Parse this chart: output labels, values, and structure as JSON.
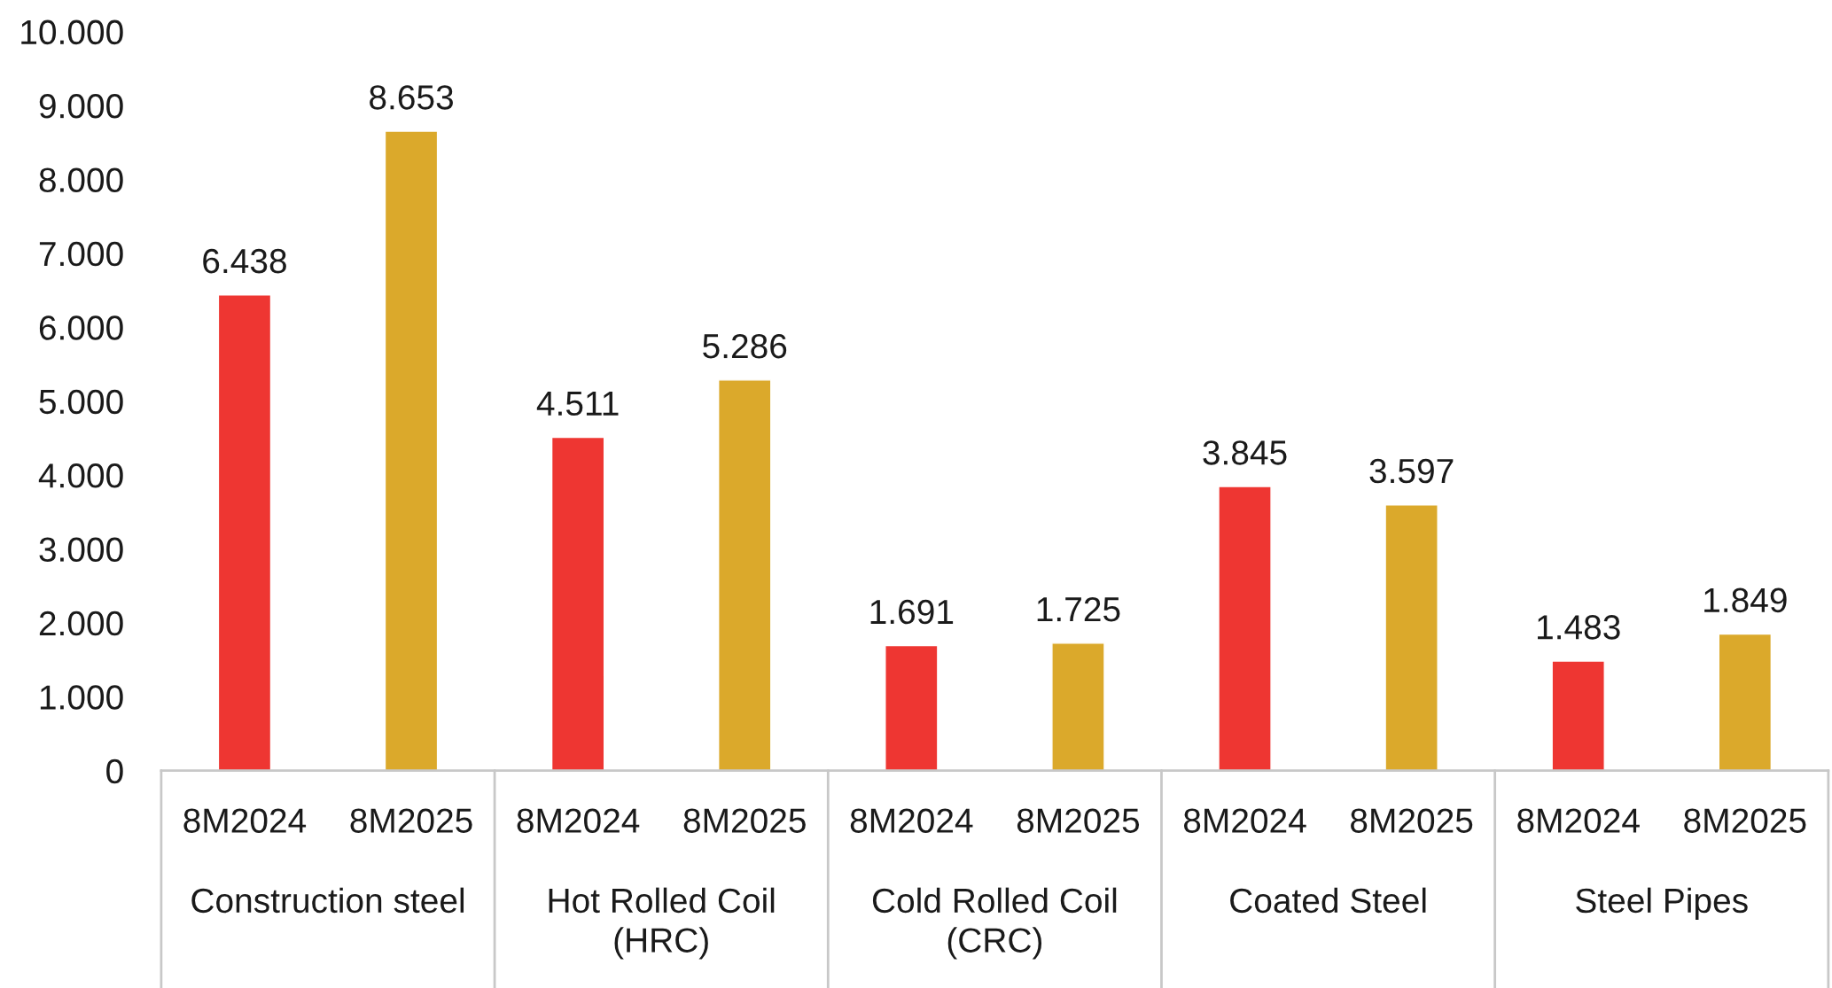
{
  "chart_data": {
    "type": "bar",
    "categories": [
      "Construction steel",
      "Hot Rolled Coil\n(HRC)",
      "Cold Rolled Coil\n(CRC)",
      "Coated Steel",
      "Steel Pipes"
    ],
    "series": [
      {
        "name": "8M2024",
        "color": "#ee3632",
        "values": [
          6438,
          4511,
          1691,
          3845,
          1483
        ],
        "value_labels": [
          "6.438",
          "4.511",
          "1.691",
          "3.845",
          "1.483"
        ]
      },
      {
        "name": "8M2025",
        "color": "#dba92b",
        "values": [
          8653,
          5286,
          1725,
          3597,
          1849
        ],
        "value_labels": [
          "8.653",
          "5.286",
          "1.725",
          "3.597",
          "1.849"
        ]
      }
    ],
    "ylim": [
      0,
      10000
    ],
    "yticks": [
      0,
      {
        "value": 1000,
        "label": "1.000"
      },
      {
        "value": 2000,
        "label": "2.000"
      },
      {
        "value": 3000,
        "label": "3.000"
      },
      {
        "value": 4000,
        "label": "4.000"
      },
      {
        "value": 5000,
        "label": "5.000"
      },
      {
        "value": 6000,
        "label": "6.000"
      },
      {
        "value": 7000,
        "label": "7.000"
      },
      {
        "value": 8000,
        "label": "8.000"
      },
      {
        "value": 9000,
        "label": "9.000"
      },
      {
        "value": 10000,
        "label": "10.000"
      }
    ],
    "grid": false,
    "legend": false
  }
}
